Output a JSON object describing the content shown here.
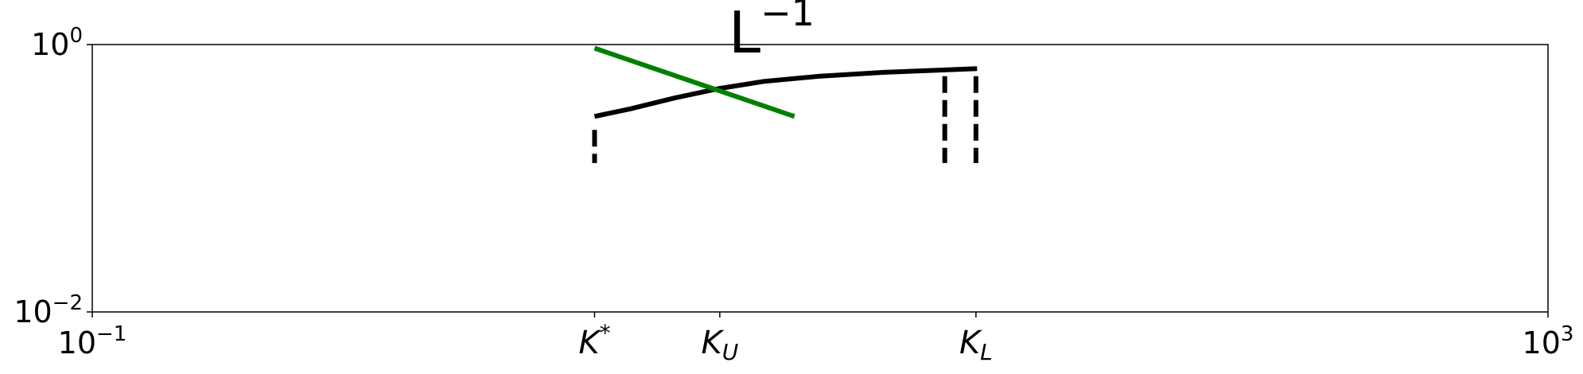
{
  "chart_data": {
    "type": "line",
    "title": {
      "base": "L",
      "exponent": "−1"
    },
    "xscale": "log",
    "yscale": "log",
    "xlim": [
      0.1,
      1000
    ],
    "ylim": [
      0.01,
      1
    ],
    "x_ticks": [
      {
        "value": 0.1,
        "base": "10",
        "exponent": "−1"
      },
      {
        "value": 1000,
        "base": "10",
        "exponent": "3"
      }
    ],
    "y_ticks": [
      {
        "value": 1,
        "base": "10",
        "exponent": "0"
      },
      {
        "value": 0.01,
        "base": "10",
        "exponent": "−2"
      }
    ],
    "k_ticks": [
      {
        "value": 2.4,
        "base": "K",
        "sup": "*",
        "sub": ""
      },
      {
        "value": 5.3,
        "base": "K",
        "sup": "",
        "sub": "U"
      },
      {
        "value": 26.8,
        "base": "K",
        "sup": "",
        "sub": "L"
      }
    ],
    "grid": false,
    "legend": "none",
    "series": [
      {
        "color": "#000000",
        "style": "solid",
        "points": [
          [
            2.4,
            0.29
          ],
          [
            3.0,
            0.33
          ],
          [
            4.0,
            0.4
          ],
          [
            5.3,
            0.47
          ],
          [
            7.0,
            0.53
          ],
          [
            10.0,
            0.58
          ],
          [
            15.0,
            0.62
          ],
          [
            20.0,
            0.64
          ],
          [
            27.0,
            0.66
          ]
        ]
      },
      {
        "color": "#008000",
        "style": "solid",
        "points": [
          [
            2.4,
            0.94
          ],
          [
            8.5,
            0.29
          ]
        ]
      }
    ],
    "vlines": [
      {
        "x": 2.4,
        "y": [
          0.13,
          0.23
        ],
        "color": "#000000",
        "style": "dashed"
      },
      {
        "x": 22.0,
        "y": [
          0.13,
          0.58
        ],
        "color": "#000000",
        "style": "dashed"
      },
      {
        "x": 26.8,
        "y": [
          0.13,
          0.58
        ],
        "color": "#000000",
        "style": "dashed"
      }
    ]
  }
}
